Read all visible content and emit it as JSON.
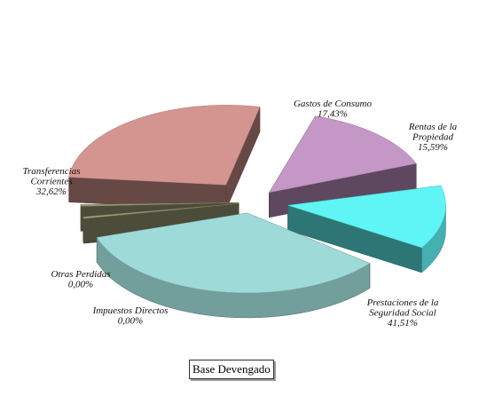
{
  "chart_data": {
    "type": "pie",
    "style": "3d-exploded",
    "title": "",
    "caption": "Base Devengado",
    "slices": [
      {
        "lines": [
          "Gastos de Consumo",
          "17,43%"
        ],
        "value": 17.43,
        "color": "#c497c6"
      },
      {
        "lines": [
          "Rentas de la",
          "Propiedad",
          "15,59%"
        ],
        "value": 15.59,
        "color": "#5ff5f5"
      },
      {
        "lines": [
          "Prestaciones de la",
          "Seguridad Social",
          "41,51%"
        ],
        "value": 41.51,
        "color": "#9edbd8"
      },
      {
        "lines": [
          "Impuestos Directos",
          "0,00%"
        ],
        "value": 0.0,
        "color": "#9e9e78"
      },
      {
        "lines": [
          "Otras Perdidas",
          "0,00%"
        ],
        "value": 0.0,
        "color": "#9e9e78"
      },
      {
        "lines": [
          "Transferencias",
          "Corrientes",
          "32,62%"
        ],
        "value": 32.62,
        "color": "#d49590"
      }
    ]
  }
}
